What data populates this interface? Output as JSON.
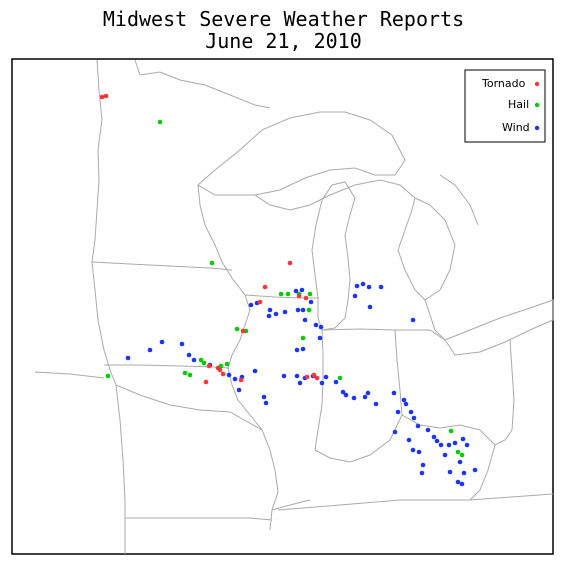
{
  "title_line1": "Midwest Severe Weather Reports",
  "title_line2": "June 21, 2010",
  "legend": [
    {
      "label": "Tornado",
      "color": "#ff3333"
    },
    {
      "label": "Hail",
      "color": "#00cc00"
    },
    {
      "label": "Wind",
      "color": "#1a33ff"
    }
  ],
  "colors": {
    "border": "#aaaaaa",
    "frame": "#000000"
  },
  "reports": {
    "tornado": [
      [
        102,
        97
      ],
      [
        106,
        96
      ],
      [
        290,
        263
      ],
      [
        265,
        287
      ],
      [
        260,
        302
      ],
      [
        299,
        296
      ],
      [
        306,
        298
      ],
      [
        243,
        331
      ],
      [
        218,
        368
      ],
      [
        209,
        366
      ],
      [
        223,
        374
      ],
      [
        206,
        382
      ],
      [
        241,
        380
      ],
      [
        307,
        377
      ],
      [
        314,
        375
      ],
      [
        317,
        378
      ],
      [
        220,
        370
      ]
    ],
    "hail": [
      [
        160,
        122
      ],
      [
        212,
        263
      ],
      [
        281,
        294
      ],
      [
        288,
        294
      ],
      [
        299,
        294
      ],
      [
        310,
        294
      ],
      [
        237,
        329
      ],
      [
        246,
        331
      ],
      [
        309,
        310
      ],
      [
        303,
        338
      ],
      [
        201,
        360
      ],
      [
        204,
        363
      ],
      [
        221,
        366
      ],
      [
        227,
        364
      ],
      [
        185,
        373
      ],
      [
        190,
        375
      ],
      [
        108,
        376
      ],
      [
        340,
        378
      ],
      [
        451,
        431
      ],
      [
        458,
        452
      ],
      [
        462,
        455
      ]
    ],
    "wind": [
      [
        128,
        358
      ],
      [
        150,
        350
      ],
      [
        162,
        342
      ],
      [
        182,
        344
      ],
      [
        189,
        355
      ],
      [
        194,
        360
      ],
      [
        210,
        365
      ],
      [
        229,
        375
      ],
      [
        235,
        379
      ],
      [
        239,
        390
      ],
      [
        242,
        377
      ],
      [
        255,
        371
      ],
      [
        264,
        397
      ],
      [
        266,
        403
      ],
      [
        284,
        376
      ],
      [
        297,
        376
      ],
      [
        305,
        378
      ],
      [
        300,
        383
      ],
      [
        313,
        376
      ],
      [
        322,
        383
      ],
      [
        326,
        377
      ],
      [
        336,
        382
      ],
      [
        343,
        392
      ],
      [
        346,
        395
      ],
      [
        354,
        398
      ],
      [
        365,
        397
      ],
      [
        368,
        393
      ],
      [
        376,
        404
      ],
      [
        269,
        316
      ],
      [
        276,
        314
      ],
      [
        285,
        312
      ],
      [
        298,
        310
      ],
      [
        303,
        310
      ],
      [
        305,
        320
      ],
      [
        316,
        325
      ],
      [
        321,
        327
      ],
      [
        320,
        338
      ],
      [
        297,
        350
      ],
      [
        303,
        349
      ],
      [
        251,
        305
      ],
      [
        257,
        303
      ],
      [
        270,
        310
      ],
      [
        296,
        291
      ],
      [
        302,
        290
      ],
      [
        311,
        302
      ],
      [
        357,
        286
      ],
      [
        363,
        284
      ],
      [
        369,
        287
      ],
      [
        381,
        287
      ],
      [
        355,
        296
      ],
      [
        370,
        307
      ],
      [
        413,
        320
      ],
      [
        394,
        393
      ],
      [
        398,
        412
      ],
      [
        404,
        400
      ],
      [
        406,
        404
      ],
      [
        411,
        412
      ],
      [
        414,
        418
      ],
      [
        418,
        426
      ],
      [
        395,
        432
      ],
      [
        409,
        440
      ],
      [
        413,
        450
      ],
      [
        419,
        452
      ],
      [
        423,
        465
      ],
      [
        428,
        430
      ],
      [
        434,
        437
      ],
      [
        437,
        441
      ],
      [
        441,
        445
      ],
      [
        445,
        455
      ],
      [
        449,
        445
      ],
      [
        455,
        443
      ],
      [
        463,
        439
      ],
      [
        467,
        445
      ],
      [
        460,
        462
      ],
      [
        464,
        473
      ],
      [
        450,
        472
      ],
      [
        458,
        482
      ],
      [
        462,
        484
      ],
      [
        475,
        470
      ],
      [
        422,
        473
      ]
    ]
  }
}
